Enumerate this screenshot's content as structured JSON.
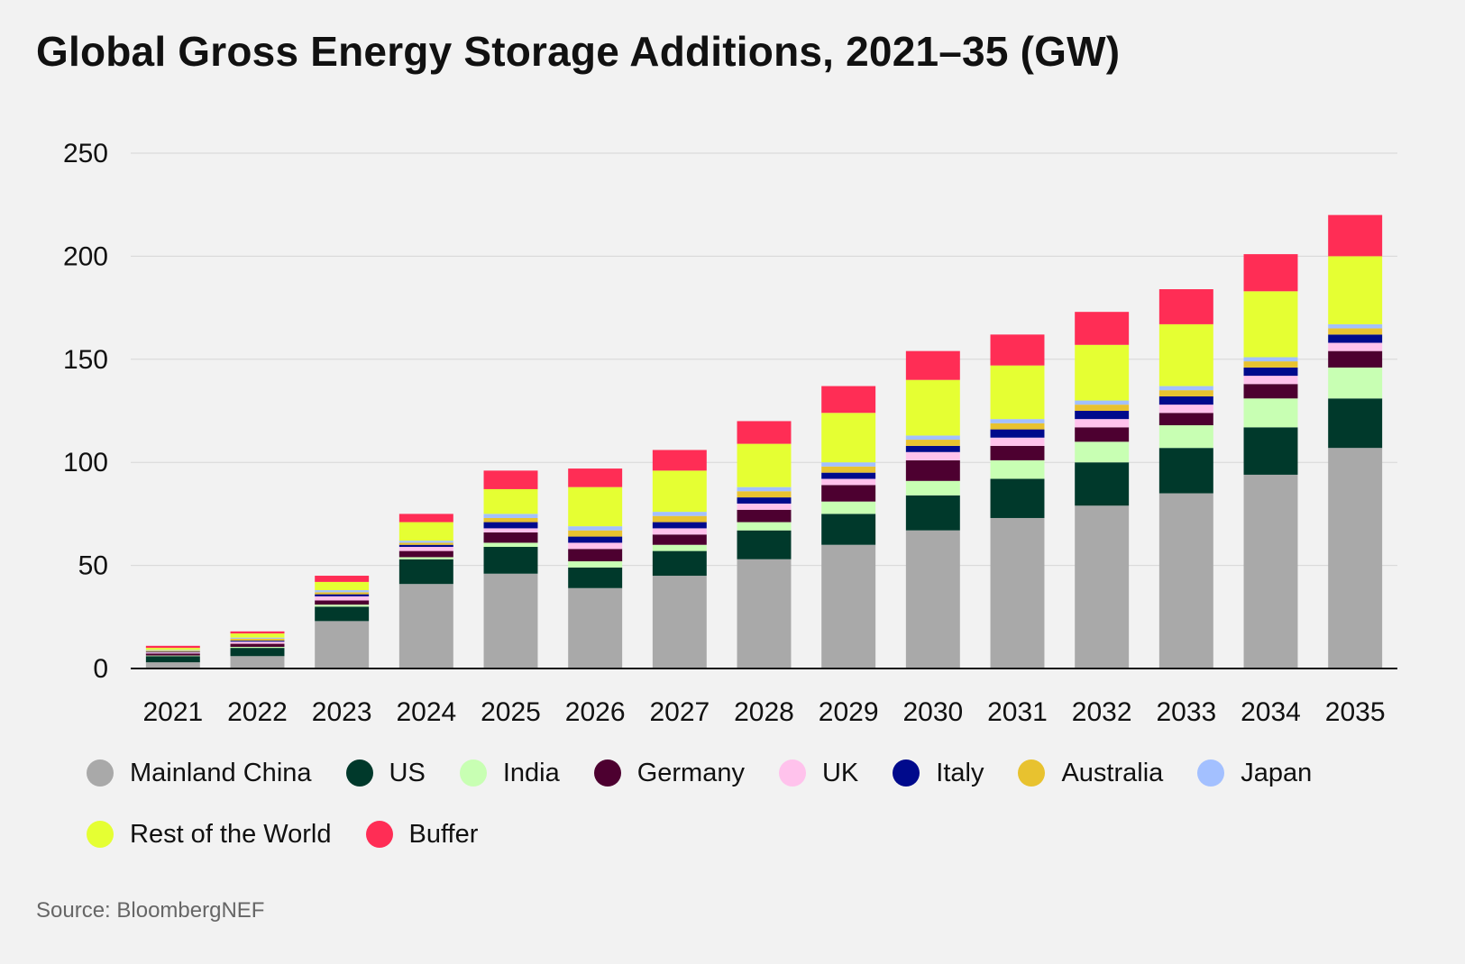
{
  "title": "Global Gross Energy Storage Additions, 2021–35 (GW)",
  "source": "Source: BloombergNEF",
  "chart_data": {
    "type": "bar",
    "stacked": true,
    "title": "Global Gross Energy Storage Additions, 2021–35 (GW)",
    "xlabel": "",
    "ylabel": "",
    "ylim": [
      0,
      250
    ],
    "yticks": [
      0,
      50,
      100,
      150,
      200,
      250
    ],
    "grid": true,
    "legend_position": "bottom",
    "categories": [
      "2021",
      "2022",
      "2023",
      "2024",
      "2025",
      "2026",
      "2027",
      "2028",
      "2029",
      "2030",
      "2031",
      "2032",
      "2033",
      "2034",
      "2035"
    ],
    "series": [
      {
        "name": "Mainland China",
        "color": "#a9a9a9",
        "values": [
          3,
          6,
          23,
          41,
          46,
          39,
          45,
          53,
          60,
          67,
          73,
          79,
          85,
          94,
          107
        ]
      },
      {
        "name": "US",
        "color": "#00392b",
        "values": [
          3,
          4,
          7,
          12,
          13,
          10,
          12,
          14,
          15,
          17,
          19,
          21,
          22,
          23,
          24
        ]
      },
      {
        "name": "India",
        "color": "#c8ffb3",
        "values": [
          0.3,
          0.5,
          1,
          1,
          2,
          3,
          3,
          4,
          6,
          7,
          9,
          10,
          11,
          14,
          15
        ]
      },
      {
        "name": "Germany",
        "color": "#4d0030",
        "values": [
          1,
          1.5,
          2,
          3,
          5,
          6,
          5,
          6,
          8,
          10,
          7,
          7,
          6,
          7,
          8
        ]
      },
      {
        "name": "UK",
        "color": "#ffc2ec",
        "values": [
          0.5,
          1,
          2,
          2,
          2,
          3,
          3,
          3,
          3,
          4,
          4,
          4,
          4,
          4,
          4
        ]
      },
      {
        "name": "Italy",
        "color": "#000a8c",
        "values": [
          0.3,
          0.5,
          1,
          1,
          3,
          3,
          3,
          3,
          3,
          3,
          4,
          4,
          4,
          4,
          4
        ]
      },
      {
        "name": "Australia",
        "color": "#e8c22f",
        "values": [
          0.5,
          1,
          1,
          1,
          2,
          3,
          3,
          3,
          3,
          3,
          3,
          3,
          3,
          3,
          3
        ]
      },
      {
        "name": "Japan",
        "color": "#a3c0ff",
        "values": [
          0.4,
          0.5,
          1,
          1,
          2,
          2,
          2,
          2,
          2,
          2,
          2,
          2,
          2,
          2,
          2
        ]
      },
      {
        "name": "Rest of the World",
        "color": "#e5ff33",
        "values": [
          1,
          2,
          4,
          9,
          12,
          19,
          20,
          21,
          24,
          27,
          26,
          27,
          30,
          32,
          33
        ]
      },
      {
        "name": "Buffer",
        "color": "#ff2d55",
        "values": [
          1,
          1,
          3,
          4,
          9,
          9,
          10,
          11,
          13,
          14,
          15,
          16,
          17,
          18,
          20
        ]
      }
    ]
  }
}
